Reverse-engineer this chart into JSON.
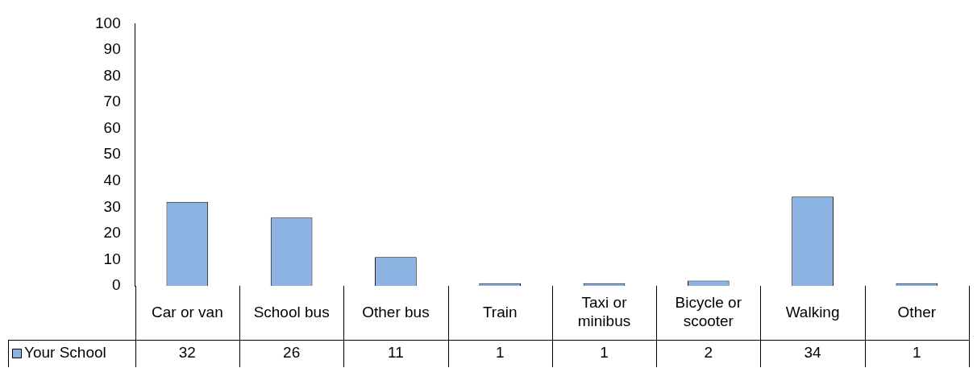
{
  "chart_data": {
    "type": "bar",
    "categories": [
      "Car or van",
      "School bus",
      "Other bus",
      "Train",
      "Taxi or minibus",
      "Bicycle or scooter",
      "Walking",
      "Other"
    ],
    "series": [
      {
        "name": "Your School",
        "color": "#8db3e2",
        "values": [
          32,
          26,
          11,
          1,
          1,
          2,
          34,
          1
        ]
      }
    ],
    "ylim": [
      0,
      100
    ],
    "yticks": [
      0,
      10,
      20,
      30,
      40,
      50,
      60,
      70,
      80,
      90,
      100
    ],
    "grid": false,
    "legend": "bottom left",
    "data_labels": true
  }
}
